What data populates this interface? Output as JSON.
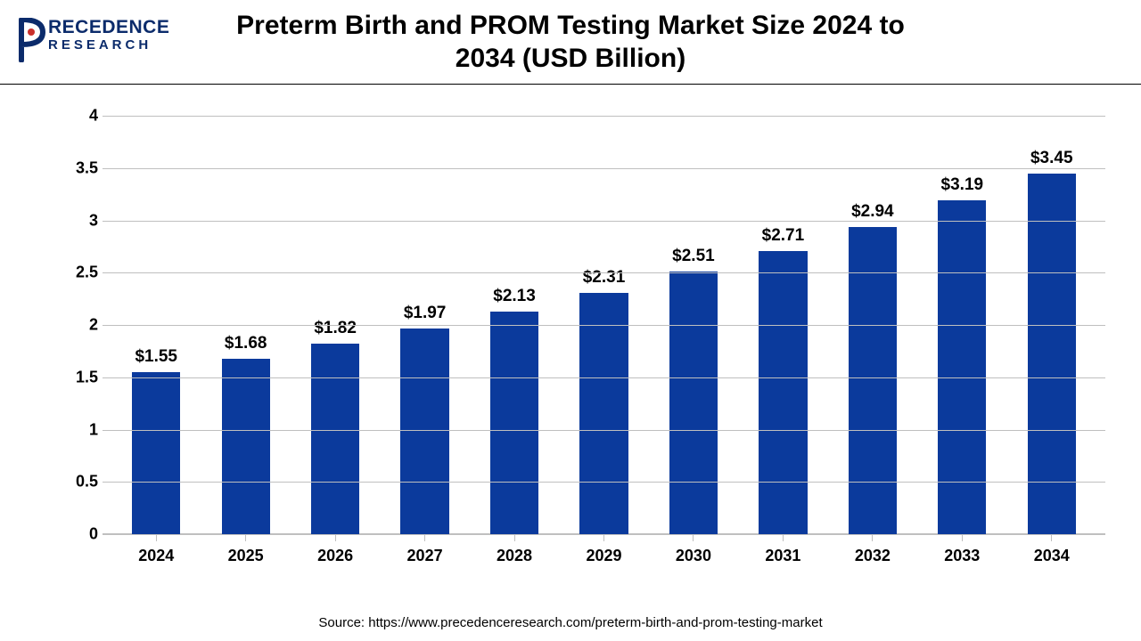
{
  "header": {
    "logo": {
      "main": "RECEDENCE",
      "sub": "RESEARCH",
      "color": "#0b2b6b"
    },
    "title": "Preterm Birth and PROM Testing Market Size 2024 to 2034 (USD Billion)"
  },
  "chart": {
    "type": "bar",
    "categories": [
      "2024",
      "2025",
      "2026",
      "2027",
      "2028",
      "2029",
      "2030",
      "2031",
      "2032",
      "2033",
      "2034"
    ],
    "values": [
      1.55,
      1.68,
      1.82,
      1.97,
      2.13,
      2.31,
      2.51,
      2.71,
      2.94,
      3.19,
      3.45
    ],
    "data_labels": [
      "$1.55",
      "$1.68",
      "$1.82",
      "$1.97",
      "$2.13",
      "$2.31",
      "$2.51",
      "$2.71",
      "$2.94",
      "$3.19",
      "$3.45"
    ],
    "bar_color": "#0b3a9c",
    "ylim": [
      0,
      4
    ],
    "ytick_step": 0.5,
    "y_ticks": [
      "0",
      "0.5",
      "1",
      "1.5",
      "2",
      "2.5",
      "3",
      "3.5",
      "4"
    ],
    "grid_color": "#bfbfbf",
    "background_color": "#ffffff",
    "label_fontsize": 19,
    "tick_fontsize": 18,
    "bar_width_ratio": 0.54
  },
  "source": "Source: https://www.precedenceresearch.com/preterm-birth-and-prom-testing-market"
}
